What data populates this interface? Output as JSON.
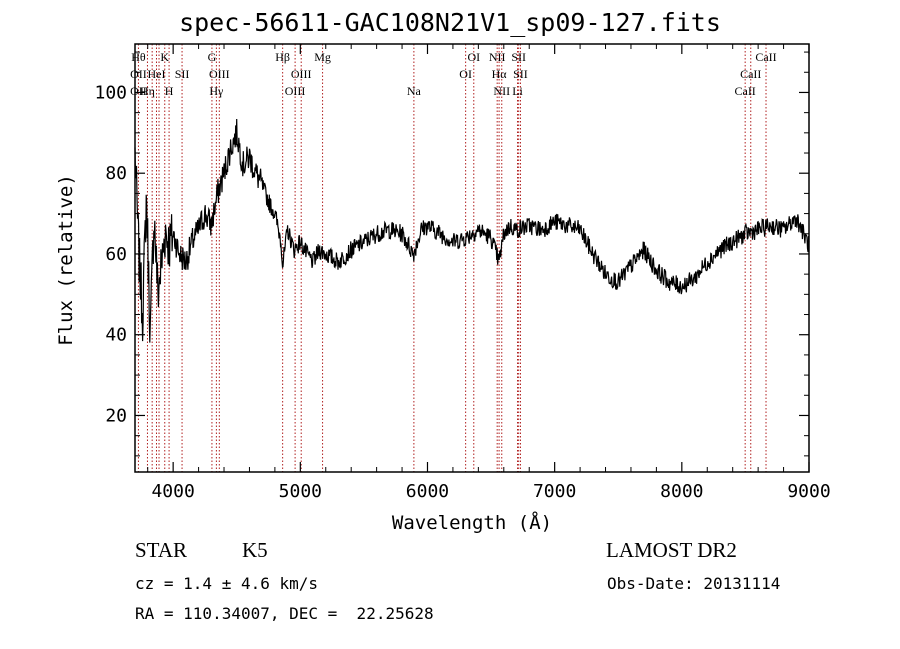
{
  "title": "spec-56611-GAC108N21V1_sp09-127.fits",
  "info": {
    "class_label": "STAR",
    "subclass_label": "K5",
    "survey": "LAMOST DR2",
    "cz": "cz = 1.4 ± 4.6 km/s",
    "obs_date": "Obs-Date: 20131114",
    "coords": "RA = 110.34007, DEC =  22.25628"
  },
  "chart_data": {
    "type": "line",
    "title": "spec-56611-GAC108N21V1_sp09-127.fits",
    "xlabel": "Wavelength (Å)",
    "ylabel": "Flux (relative)",
    "xlim": [
      3700,
      9000
    ],
    "ylim": [
      6,
      112
    ],
    "xticks": [
      4000,
      5000,
      6000,
      7000,
      8000,
      9000
    ],
    "yticks": [
      20,
      40,
      60,
      80,
      100
    ],
    "line_color": "#000000",
    "marker_color": "#b02020",
    "series": [
      {
        "x": [
          3700,
          3730,
          3760,
          3790,
          3820,
          3850,
          3880,
          3910,
          3940,
          3970,
          4000,
          4050,
          4100,
          4150,
          4200,
          4250,
          4300,
          4350,
          4400,
          4450,
          4500,
          4550,
          4600,
          4650,
          4700,
          4750,
          4800,
          4850,
          4861,
          4900,
          4950,
          5000,
          5050,
          5100,
          5150,
          5200,
          5250,
          5300,
          5400,
          5500,
          5600,
          5700,
          5800,
          5890,
          5950,
          6000,
          6100,
          6200,
          6300,
          6400,
          6500,
          6563,
          6600,
          6650,
          6700,
          6800,
          6900,
          7000,
          7100,
          7200,
          7300,
          7400,
          7500,
          7600,
          7700,
          7800,
          7900,
          8000,
          8100,
          8200,
          8300,
          8400,
          8500,
          8600,
          8700,
          8800,
          8900,
          9000
        ],
        "y": [
          85,
          60,
          45,
          75,
          40,
          70,
          50,
          58,
          66,
          62,
          65,
          60,
          58,
          63,
          66,
          70,
          67,
          75,
          80,
          86,
          90,
          82,
          84,
          80,
          77,
          73,
          70,
          63,
          57,
          66,
          61,
          63,
          60,
          58,
          61,
          60,
          59,
          58,
          61,
          63,
          65,
          66,
          65,
          60,
          66,
          67,
          65,
          63,
          64,
          66,
          64,
          58,
          65,
          67,
          66,
          67,
          66,
          68,
          67,
          66,
          60,
          55,
          53,
          57,
          61,
          56,
          53,
          52,
          54,
          58,
          61,
          63,
          65,
          66,
          67,
          66,
          69,
          62
        ]
      }
    ],
    "lines": [
      {
        "wave": 3727,
        "top": "Hθ",
        "mid": "OII",
        "bot": "OII"
      },
      {
        "wave": 3798,
        "top": "",
        "mid": "",
        "bot": "Hη"
      },
      {
        "wave": 3835,
        "top": "",
        "mid": "",
        "bot": ""
      },
      {
        "wave": 3869,
        "top": "",
        "mid": "HeI",
        "bot": ""
      },
      {
        "wave": 3889,
        "top": "",
        "mid": "",
        "bot": ""
      },
      {
        "wave": 3934,
        "top": "K",
        "mid": "",
        "bot": ""
      },
      {
        "wave": 3968,
        "top": "",
        "mid": "",
        "bot": "H"
      },
      {
        "wave": 4070,
        "top": "",
        "mid": "SII",
        "bot": ""
      },
      {
        "wave": 4305,
        "top": "G",
        "mid": "",
        "bot": ""
      },
      {
        "wave": 4340,
        "top": "",
        "mid": "",
        "bot": "Hγ"
      },
      {
        "wave": 4363,
        "top": "",
        "mid": "OIII",
        "bot": ""
      },
      {
        "wave": 4861,
        "top": "Hβ",
        "mid": "",
        "bot": ""
      },
      {
        "wave": 4959,
        "top": "",
        "mid": "",
        "bot": "OIII"
      },
      {
        "wave": 5007,
        "top": "",
        "mid": "OIII",
        "bot": ""
      },
      {
        "wave": 5175,
        "top": "Mg",
        "mid": "",
        "bot": ""
      },
      {
        "wave": 5893,
        "top": "",
        "mid": "",
        "bot": "Na"
      },
      {
        "wave": 6300,
        "top": "",
        "mid": "OI",
        "bot": ""
      },
      {
        "wave": 6364,
        "top": "OI",
        "mid": "",
        "bot": ""
      },
      {
        "wave": 6548,
        "top": "NII",
        "mid": "",
        "bot": ""
      },
      {
        "wave": 6563,
        "top": "",
        "mid": "Hα",
        "bot": ""
      },
      {
        "wave": 6584,
        "top": "",
        "mid": "",
        "bot": "NII"
      },
      {
        "wave": 6708,
        "top": "",
        "mid": "",
        "bot": "Li"
      },
      {
        "wave": 6717,
        "top": "SII",
        "mid": "",
        "bot": ""
      },
      {
        "wave": 6731,
        "top": "",
        "mid": "SII",
        "bot": ""
      },
      {
        "wave": 8498,
        "top": "",
        "mid": "",
        "bot": "CaII"
      },
      {
        "wave": 8542,
        "top": "",
        "mid": "CaII",
        "bot": ""
      },
      {
        "wave": 8662,
        "top": "CaII",
        "mid": "",
        "bot": ""
      }
    ]
  }
}
